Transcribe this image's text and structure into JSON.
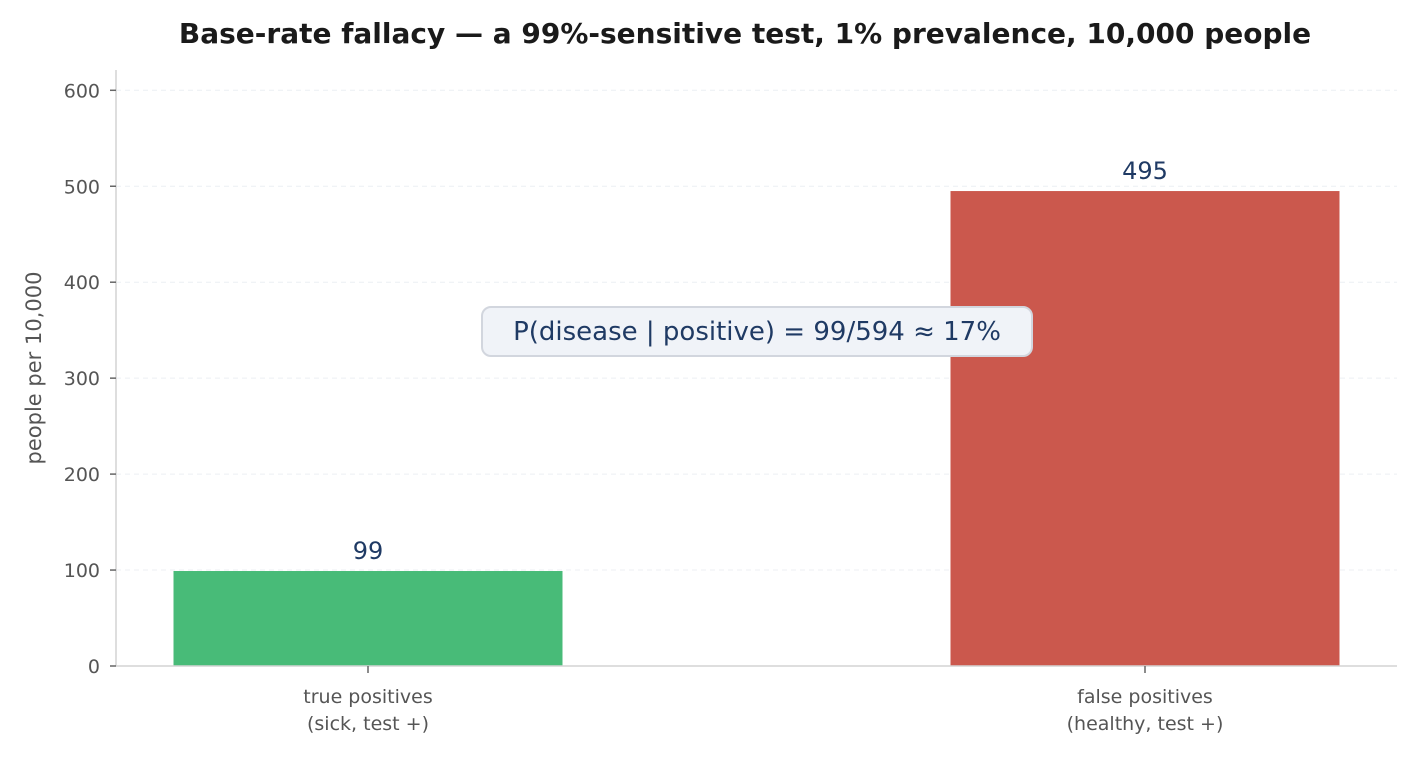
{
  "chart_data": {
    "type": "bar",
    "title": "Base-rate fallacy — a 99%-sensitive test, 1% prevalence, 10,000 people",
    "xlabel": "",
    "ylabel": "people per 10,000",
    "ylim": [
      0,
      620
    ],
    "yticks": [
      0,
      100,
      200,
      300,
      400,
      500,
      600
    ],
    "grid": "horizontal dashed",
    "categories": [
      [
        "true positives",
        "(sick, test +)"
      ],
      [
        "false positives",
        "(healthy, test +)"
      ]
    ],
    "values": [
      99,
      495
    ],
    "value_labels": [
      "99",
      "495"
    ],
    "colors": [
      "#48bb78",
      "#cb584d"
    ],
    "annotation": {
      "text": "P(disease | positive) = 99/594 ≈ 17%",
      "y": 350
    }
  }
}
